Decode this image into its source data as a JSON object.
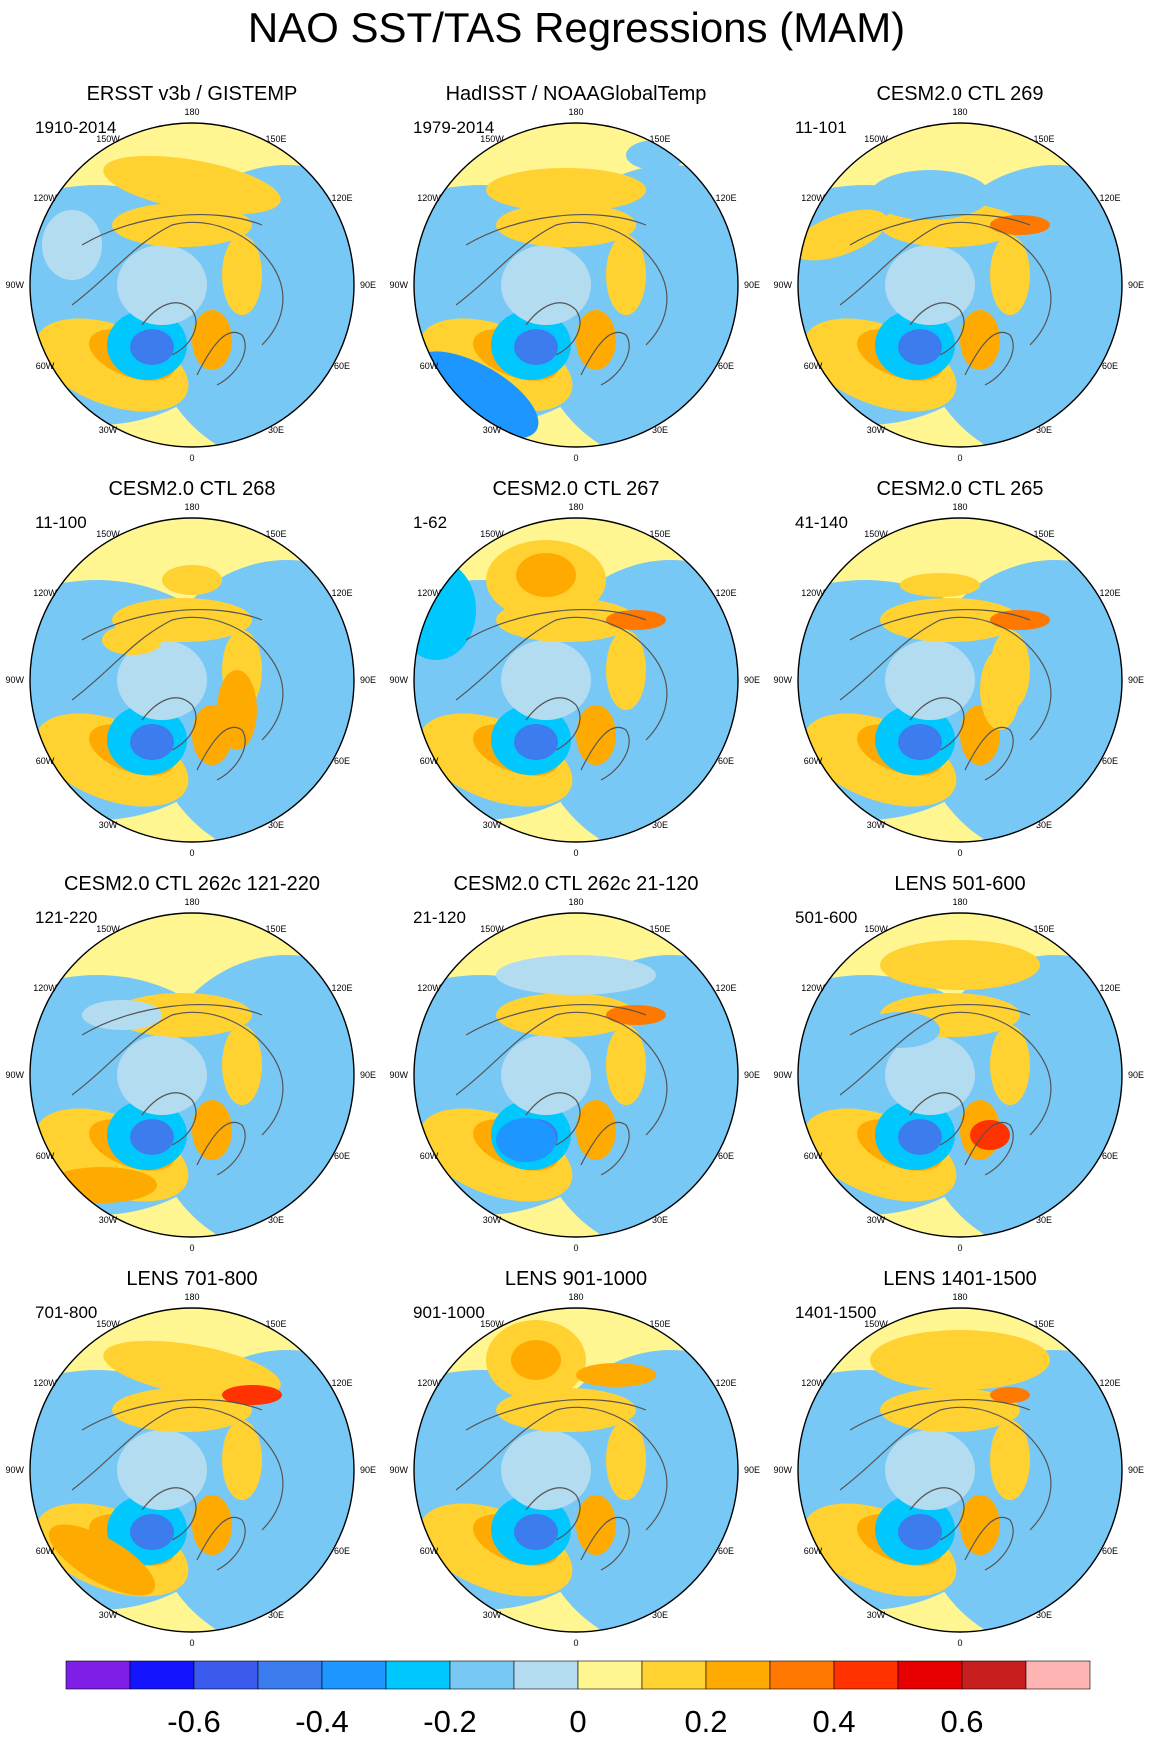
{
  "figure": {
    "title": "NAO SST/TAS Regressions (MAM)"
  },
  "map_labels": {
    "top": "180",
    "upper_left": "150W",
    "upper_right": "150E",
    "left_upper": "120W",
    "right_upper": "120E",
    "left": "90W",
    "right": "90E",
    "left_lower": "60W",
    "right_lower": "60E",
    "lower_left": "30W",
    "lower_right": "30E",
    "bottom": "0"
  },
  "panels": [
    {
      "title": "ERSST v3b / GISTEMP",
      "period": "1910-2014",
      "pattern": 0
    },
    {
      "title": "HadISST / NOAAGlobalTemp",
      "period": "1979-2014",
      "pattern": 1
    },
    {
      "title": "CESM2.0 CTL 269",
      "period": "11-101",
      "pattern": 2
    },
    {
      "title": "CESM2.0 CTL 268",
      "period": "11-100",
      "pattern": 3
    },
    {
      "title": "CESM2.0 CTL 267",
      "period": "1-62",
      "pattern": 4
    },
    {
      "title": "CESM2.0 CTL 265",
      "period": "41-140",
      "pattern": 5
    },
    {
      "title": "CESM2.0 CTL 262c 121-220",
      "period": "121-220",
      "pattern": 6
    },
    {
      "title": "CESM2.0 CTL 262c 21-120",
      "period": "21-120",
      "pattern": 7
    },
    {
      "title": "LENS 501-600",
      "period": "501-600",
      "pattern": 8
    },
    {
      "title": "LENS 701-800",
      "period": "701-800",
      "pattern": 9
    },
    {
      "title": "LENS 901-1000",
      "period": "901-1000",
      "pattern": 10
    },
    {
      "title": "LENS 1401-1500",
      "period": "1401-1500",
      "pattern": 11
    }
  ],
  "colorbar": {
    "colors": [
      "#7e1ee6",
      "#1414ff",
      "#3a5bee",
      "#3c7cee",
      "#1e96ff",
      "#00c8ff",
      "#78c8f5",
      "#b4dcf0",
      "#fff591",
      "#ffd232",
      "#ffaa00",
      "#ff7800",
      "#ff3200",
      "#e60000",
      "#c81e1e",
      "#ffb4b4"
    ],
    "tick_labels": [
      "-0.6",
      "-0.4",
      "-0.2",
      "0",
      "0.2",
      "0.4",
      "0.6"
    ]
  },
  "palette": {
    "land_outline": "#555555",
    "missing": "#ffffff"
  }
}
